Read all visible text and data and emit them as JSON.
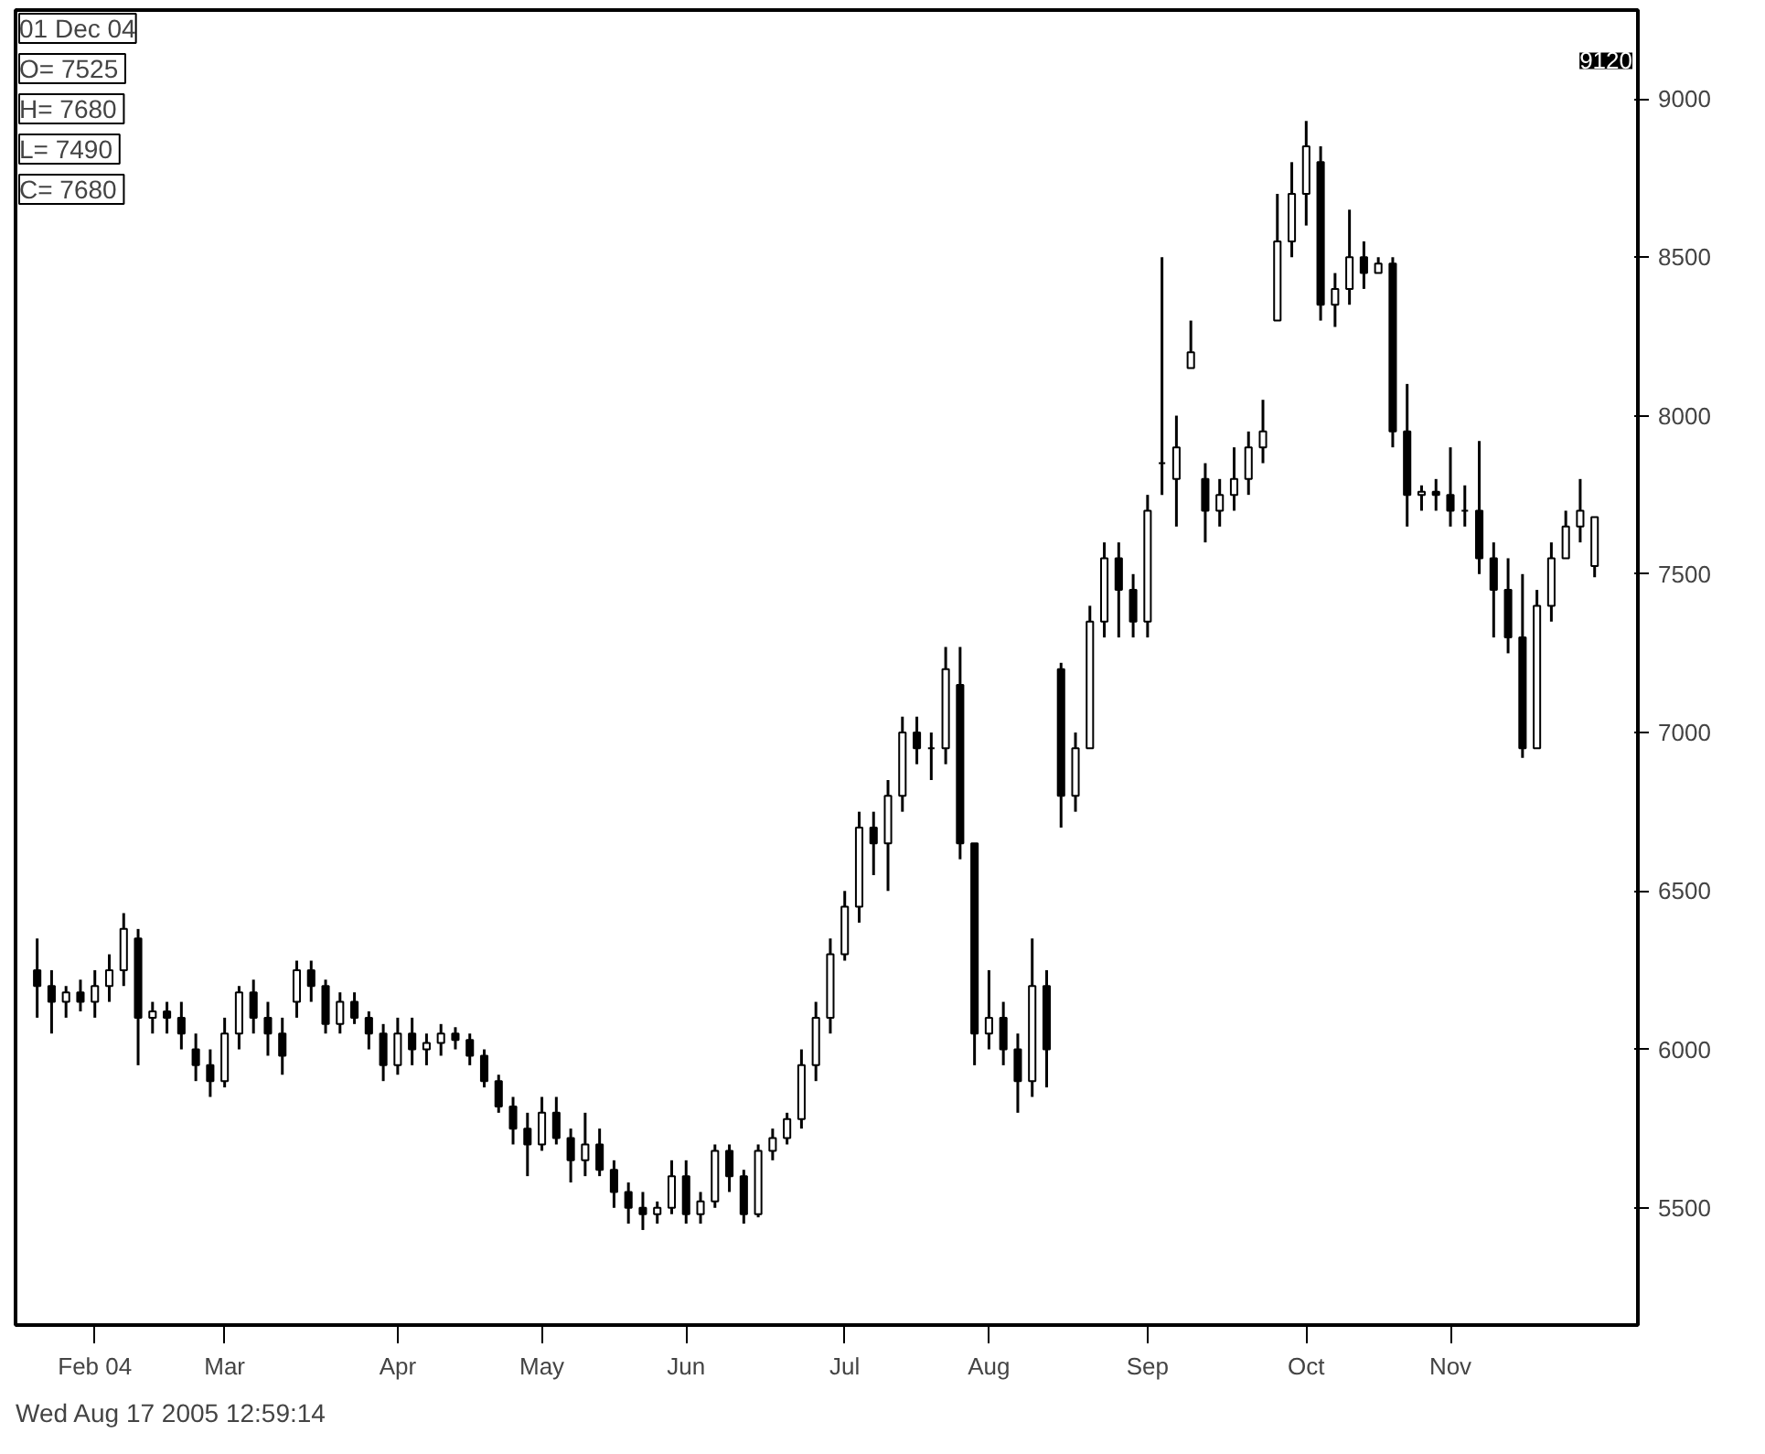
{
  "chart_data": {
    "type": "candlestick",
    "color": "#000000",
    "categories": [
      null,
      null,
      null,
      null,
      "Feb 04",
      null,
      null,
      null,
      null,
      null,
      null,
      null,
      null,
      "Mar",
      null,
      null,
      null,
      null,
      null,
      null,
      null,
      null,
      null,
      null,
      null,
      "Apr",
      null,
      null,
      null,
      null,
      null,
      null,
      null,
      null,
      null,
      "May",
      null,
      null,
      null,
      null,
      null,
      null,
      null,
      null,
      null,
      "Jun",
      null,
      null,
      null,
      null,
      null,
      null,
      null,
      null,
      null,
      null,
      "Jul",
      null,
      null,
      null,
      null,
      null,
      null,
      null,
      null,
      null,
      "Aug",
      null,
      null,
      null,
      null,
      null,
      null,
      null,
      null,
      null,
      null,
      "Sep",
      null,
      null,
      null,
      null,
      null,
      null,
      null,
      null,
      null,
      null,
      "Oct",
      null,
      null,
      null,
      null,
      null,
      null,
      null,
      null,
      null,
      "Nov",
      null,
      null,
      null,
      null,
      null,
      null,
      null,
      null,
      null,
      null
    ],
    "ohlc": [
      [
        6250,
        6350,
        6100,
        6200
      ],
      [
        6200,
        6250,
        6050,
        6150
      ],
      [
        6150,
        6200,
        6100,
        6180
      ],
      [
        6180,
        6220,
        6120,
        6150
      ],
      [
        6150,
        6250,
        6100,
        6200
      ],
      [
        6200,
        6300,
        6150,
        6250
      ],
      [
        6250,
        6430,
        6200,
        6380
      ],
      [
        6350,
        6380,
        5950,
        6100
      ],
      [
        6100,
        6150,
        6050,
        6120
      ],
      [
        6120,
        6150,
        6050,
        6100
      ],
      [
        6100,
        6150,
        6000,
        6050
      ],
      [
        6000,
        6050,
        5900,
        5950
      ],
      [
        5950,
        6000,
        5850,
        5900
      ],
      [
        5900,
        6100,
        5880,
        6050
      ],
      [
        6050,
        6200,
        6000,
        6180
      ],
      [
        6180,
        6220,
        6050,
        6100
      ],
      [
        6100,
        6150,
        5980,
        6050
      ],
      [
        6050,
        6100,
        5920,
        5980
      ],
      [
        6150,
        6280,
        6100,
        6250
      ],
      [
        6250,
        6280,
        6150,
        6200
      ],
      [
        6200,
        6220,
        6050,
        6080
      ],
      [
        6080,
        6180,
        6050,
        6150
      ],
      [
        6150,
        6180,
        6080,
        6100
      ],
      [
        6100,
        6120,
        6000,
        6050
      ],
      [
        6050,
        6080,
        5900,
        5950
      ],
      [
        5950,
        6100,
        5920,
        6050
      ],
      [
        6050,
        6100,
        5950,
        6000
      ],
      [
        6000,
        6050,
        5950,
        6020
      ],
      [
        6020,
        6080,
        5980,
        6050
      ],
      [
        6050,
        6070,
        6000,
        6030
      ],
      [
        6030,
        6050,
        5950,
        5980
      ],
      [
        5980,
        6000,
        5880,
        5900
      ],
      [
        5900,
        5920,
        5800,
        5820
      ],
      [
        5820,
        5850,
        5700,
        5750
      ],
      [
        5750,
        5800,
        5600,
        5700
      ],
      [
        5700,
        5850,
        5680,
        5800
      ],
      [
        5800,
        5850,
        5700,
        5720
      ],
      [
        5720,
        5750,
        5580,
        5650
      ],
      [
        5650,
        5800,
        5600,
        5700
      ],
      [
        5700,
        5750,
        5600,
        5620
      ],
      [
        5620,
        5650,
        5500,
        5550
      ],
      [
        5550,
        5580,
        5450,
        5500
      ],
      [
        5500,
        5550,
        5430,
        5480
      ],
      [
        5480,
        5520,
        5450,
        5500
      ],
      [
        5500,
        5650,
        5480,
        5600
      ],
      [
        5600,
        5650,
        5450,
        5480
      ],
      [
        5480,
        5550,
        5450,
        5520
      ],
      [
        5520,
        5700,
        5500,
        5680
      ],
      [
        5680,
        5700,
        5550,
        5600
      ],
      [
        5600,
        5620,
        5450,
        5480
      ],
      [
        5480,
        5700,
        5470,
        5680
      ],
      [
        5680,
        5750,
        5650,
        5720
      ],
      [
        5720,
        5800,
        5700,
        5780
      ],
      [
        5780,
        6000,
        5750,
        5950
      ],
      [
        5950,
        6150,
        5900,
        6100
      ],
      [
        6100,
        6350,
        6050,
        6300
      ],
      [
        6300,
        6500,
        6280,
        6450
      ],
      [
        6450,
        6750,
        6400,
        6700
      ],
      [
        6700,
        6750,
        6550,
        6650
      ],
      [
        6650,
        6850,
        6500,
        6800
      ],
      [
        6800,
        7050,
        6750,
        7000
      ],
      [
        7000,
        7050,
        6900,
        6950
      ],
      [
        6950,
        7000,
        6850,
        6950
      ],
      [
        6950,
        7270,
        6900,
        7200
      ],
      [
        7150,
        7270,
        6600,
        6650
      ],
      [
        6650,
        6650,
        5950,
        6050
      ],
      [
        6050,
        6250,
        6000,
        6100
      ],
      [
        6100,
        6150,
        5950,
        6000
      ],
      [
        6000,
        6050,
        5800,
        5900
      ],
      [
        5900,
        6350,
        5850,
        6200
      ],
      [
        6200,
        6250,
        5880,
        6000
      ],
      [
        7200,
        7220,
        6700,
        6800
      ],
      [
        6800,
        7000,
        6750,
        6950
      ],
      [
        6950,
        7400,
        6950,
        7350
      ],
      [
        7350,
        7600,
        7300,
        7550
      ],
      [
        7550,
        7600,
        7300,
        7450
      ],
      [
        7450,
        7500,
        7300,
        7350
      ],
      [
        7350,
        7750,
        7300,
        7700
      ],
      [
        7850,
        8500,
        7750,
        7850
      ],
      [
        7800,
        8000,
        7650,
        7900
      ],
      [
        8150,
        8300,
        8150,
        8200
      ],
      [
        7800,
        7850,
        7600,
        7700
      ],
      [
        7700,
        7800,
        7650,
        7750
      ],
      [
        7750,
        7900,
        7700,
        7800
      ],
      [
        7800,
        7950,
        7750,
        7900
      ],
      [
        7900,
        8050,
        7850,
        7950
      ],
      [
        8300,
        8700,
        8300,
        8550
      ],
      [
        8550,
        8800,
        8500,
        8700
      ],
      [
        8700,
        8930,
        8600,
        8850
      ],
      [
        8800,
        8850,
        8300,
        8350
      ],
      [
        8350,
        8450,
        8280,
        8400
      ],
      [
        8400,
        8650,
        8350,
        8500
      ],
      [
        8500,
        8550,
        8400,
        8450
      ],
      [
        8450,
        8500,
        8450,
        8480
      ],
      [
        8480,
        8500,
        7900,
        7950
      ],
      [
        7950,
        8100,
        7650,
        7750
      ],
      [
        7750,
        7780,
        7700,
        7760
      ],
      [
        7760,
        7800,
        7700,
        7750
      ],
      [
        7750,
        7900,
        7650,
        7700
      ],
      [
        7700,
        7780,
        7650,
        7700
      ],
      [
        7700,
        7920,
        7500,
        7550
      ],
      [
        7550,
        7600,
        7300,
        7450
      ],
      [
        7450,
        7550,
        7250,
        7300
      ],
      [
        7300,
        7500,
        6920,
        6950
      ],
      [
        6950,
        7450,
        6950,
        7400
      ],
      [
        7400,
        7600,
        7350,
        7550
      ],
      [
        7550,
        7700,
        7550,
        7650
      ],
      [
        7650,
        7800,
        7600,
        7700
      ],
      [
        7525,
        7680,
        7490,
        7680
      ]
    ],
    "ylim": [
      5130,
      9280
    ],
    "yticks": [
      5500,
      6000,
      6500,
      7000,
      7500,
      8000,
      8500,
      9000
    ],
    "annotations": [
      "01 Dec 04",
      "O=  7525",
      "H=  7680",
      "L=  7490",
      "C=  7680",
      {
        "text": "9120",
        "y": 9120
      },
      "Wed Aug 17 2005 12:59:14"
    ]
  }
}
